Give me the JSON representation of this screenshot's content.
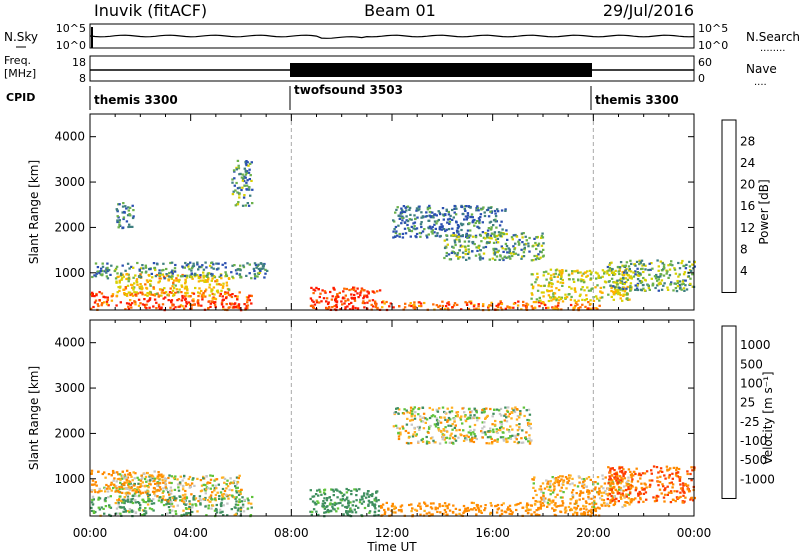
{
  "header": {
    "station": "Inuvik (fitACF)",
    "beam": "Beam 01",
    "date": "29/Jul/2016"
  },
  "noise_panel": {
    "left_label": "N.Sky",
    "right_label": "N.Search",
    "right_legend": "........",
    "left_ticks": [
      "10^5",
      "10^0"
    ],
    "right_ticks": [
      "10^5",
      "10^0"
    ]
  },
  "freq_panel": {
    "left_label_line1": "Freq.",
    "left_label_line2": "[MHz]",
    "right_label": "Nave",
    "right_legend": "....",
    "left_ticks": [
      "18",
      "8"
    ],
    "right_ticks": [
      "60",
      "0"
    ]
  },
  "cpid_panel": {
    "label": "CPID",
    "segments": [
      {
        "name": "themis 3300",
        "start_hour": 0,
        "end_hour": 8
      },
      {
        "name": "twofsound 3503",
        "start_hour": 8,
        "end_hour": 20
      },
      {
        "name": "themis 3300",
        "start_hour": 20,
        "end_hour": 24
      }
    ]
  },
  "chart_data": [
    {
      "type": "heatmap",
      "title": "Power",
      "xlabel": "Time UT",
      "ylabel": "Slant Range [km]",
      "xlim": [
        0,
        24
      ],
      "ylim": [
        180,
        4500
      ],
      "x_ticks": [
        "00:00",
        "04:00",
        "08:00",
        "12:00",
        "16:00",
        "20:00",
        "00:00"
      ],
      "y_ticks": [
        "1000",
        "2000",
        "3000",
        "4000"
      ],
      "y_tick_values": [
        1000,
        2000,
        3000,
        4000
      ],
      "colorbar_label": "Power [dB]",
      "colorbar_ticks": [
        "28",
        "24",
        "20",
        "16",
        "12",
        "8",
        "4"
      ],
      "colorbar_colors": [
        "#ff0000",
        "#ff4a00",
        "#ff9800",
        "#ffc400",
        "#e6d200",
        "#8ac72f",
        "#4a9a6a",
        "#2f5faa",
        "#1a2ae0",
        "#0000ff"
      ],
      "vertical_markers_hour": [
        8,
        20
      ],
      "patches": [
        {
          "t0": 0.0,
          "t1": 6.4,
          "r0": 200,
          "r1": 600,
          "level": 24
        },
        {
          "t0": 1.0,
          "t1": 5.5,
          "r0": 500,
          "r1": 1000,
          "level": 16
        },
        {
          "t0": 0.0,
          "t1": 7.0,
          "r0": 900,
          "r1": 1250,
          "level": 8
        },
        {
          "t0": 1.0,
          "t1": 1.7,
          "r0": 2000,
          "r1": 2600,
          "level": 6
        },
        {
          "t0": 5.6,
          "t1": 6.4,
          "r0": 2500,
          "r1": 3500,
          "level": 8
        },
        {
          "t0": 8.7,
          "t1": 11.5,
          "r0": 200,
          "r1": 700,
          "level": 26
        },
        {
          "t0": 11.5,
          "t1": 20.3,
          "r0": 200,
          "r1": 400,
          "level": 22
        },
        {
          "t0": 12.0,
          "t1": 16.5,
          "r0": 1800,
          "r1": 2500,
          "level": 6
        },
        {
          "t0": 14.0,
          "t1": 18.0,
          "r0": 1300,
          "r1": 1900,
          "level": 10
        },
        {
          "t0": 17.5,
          "t1": 21.5,
          "r0": 400,
          "r1": 1100,
          "level": 14
        },
        {
          "t0": 20.5,
          "t1": 24.0,
          "r0": 600,
          "r1": 1300,
          "level": 10
        }
      ]
    },
    {
      "type": "heatmap",
      "title": "Velocity",
      "xlabel": "Time UT",
      "ylabel": "Slant Range [km]",
      "xlim": [
        0,
        24
      ],
      "ylim": [
        180,
        4500
      ],
      "x_ticks": [
        "00:00",
        "04:00",
        "08:00",
        "12:00",
        "16:00",
        "20:00",
        "00:00"
      ],
      "y_ticks": [
        "1000",
        "2000",
        "3000",
        "4000"
      ],
      "y_tick_values": [
        1000,
        2000,
        3000,
        4000
      ],
      "colorbar_label": "Velocity [m s⁻¹]",
      "colorbar_ticks": [
        "1000",
        "500",
        "100",
        "25",
        "-25",
        "-100",
        "-500",
        "-1000"
      ],
      "colorbar_colors": [
        "#1a3ad0",
        "#2d6aa0",
        "#3f8f5f",
        "#5fc33a",
        "#c8c8c8",
        "#c8c8c8",
        "#ffb020",
        "#ff8a00",
        "#ff4a00",
        "#ff0000"
      ],
      "vertical_markers_hour": [
        8,
        20
      ],
      "patches": [
        {
          "t0": 0.0,
          "t1": 6.4,
          "r0": 200,
          "r1": 650,
          "level": 100
        },
        {
          "t0": 1.0,
          "t1": 6.0,
          "r0": 500,
          "r1": 1100,
          "level": 0
        },
        {
          "t0": 0.0,
          "t1": 3.0,
          "r0": 700,
          "r1": 1200,
          "level": -100
        },
        {
          "t0": 8.7,
          "t1": 11.5,
          "r0": 200,
          "r1": 800,
          "level": 200
        },
        {
          "t0": 12.0,
          "t1": 17.5,
          "r0": 1800,
          "r1": 2600,
          "level": 0
        },
        {
          "t0": 11.5,
          "t1": 20.3,
          "r0": 200,
          "r1": 500,
          "level": -200
        },
        {
          "t0": 17.5,
          "t1": 21.5,
          "r0": 400,
          "r1": 1100,
          "level": -100
        },
        {
          "t0": 20.5,
          "t1": 24.0,
          "r0": 500,
          "r1": 1300,
          "level": -500
        }
      ]
    }
  ]
}
